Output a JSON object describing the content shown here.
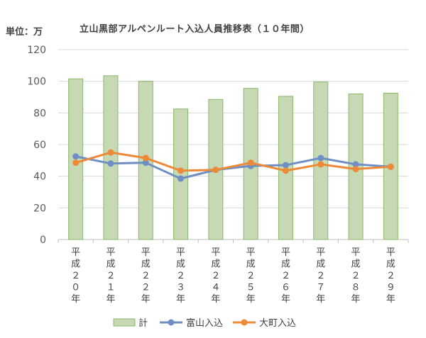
{
  "unit_label": "単位：万",
  "chart_data": {
    "type": "bar",
    "title": "立山黒部アルペンルート入込人員推移表（１０年間）",
    "categories": [
      "平成２０年",
      "平成２１年",
      "平成２２年",
      "平成２３年",
      "平成２４年",
      "平成２５年",
      "平成２６年",
      "平成２７年",
      "平成２８年",
      "平成２９年"
    ],
    "ylim": [
      0,
      120
    ],
    "yticks": [
      0,
      20,
      40,
      60,
      80,
      100,
      120
    ],
    "grid": true,
    "legend_position": "bottom",
    "series": [
      {
        "name": "計",
        "kind": "bar",
        "color": "#c6d9b4",
        "edge": "#8ab86a",
        "values": [
          101.5,
          103.5,
          100,
          82.5,
          88.5,
          95.5,
          90.5,
          99.5,
          92,
          92.5
        ]
      },
      {
        "name": "富山入込",
        "kind": "line",
        "color": "#6f8fc4",
        "values": [
          52.5,
          48,
          48.5,
          38.5,
          44,
          46.5,
          47,
          51.5,
          47.5,
          46
        ]
      },
      {
        "name": "大町入込",
        "kind": "line",
        "color": "#ed8a38",
        "values": [
          48.5,
          55,
          51.5,
          43.5,
          44,
          48.5,
          43.5,
          47.5,
          44.5,
          46
        ]
      }
    ]
  }
}
